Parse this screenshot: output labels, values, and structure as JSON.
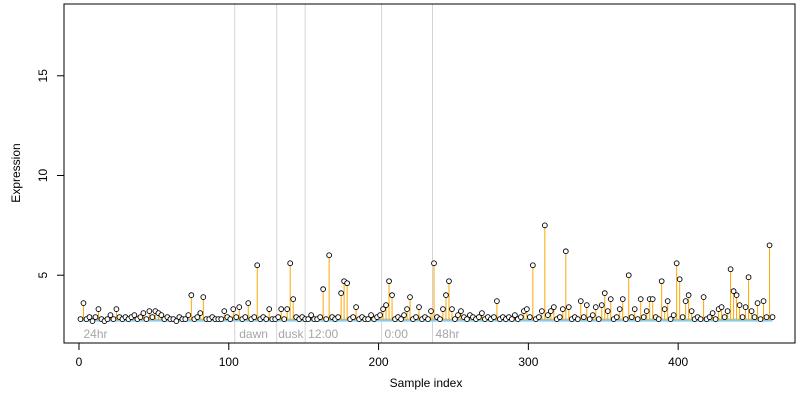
{
  "chart_data": {
    "type": "scatter",
    "title": "",
    "xlabel": "Sample index",
    "ylabel": "Expression",
    "xlim": [
      -10,
      478
    ],
    "ylim": [
      1.6,
      18.6
    ],
    "x_ticks": [
      0,
      100,
      200,
      300,
      400
    ],
    "x_tick_labels": [
      "0",
      "100",
      "200",
      "300",
      "400"
    ],
    "y_ticks": [
      5,
      10,
      15
    ],
    "y_tick_labels": [
      "5",
      "10",
      "15"
    ],
    "baseline": 2.75,
    "grid": false,
    "legend": "none",
    "region_dividers": [
      104,
      132,
      151,
      202,
      236
    ],
    "region_labels": [
      {
        "x": 3,
        "text": "24hr"
      },
      {
        "x": 107,
        "text": "dawn"
      },
      {
        "x": 133,
        "text": "dusk"
      },
      {
        "x": 153,
        "text": "12:00"
      },
      {
        "x": 204,
        "text": "0:00"
      },
      {
        "x": 238,
        "text": "48hr"
      }
    ],
    "colors": {
      "baseline": "#87ceeb",
      "stem": "#ffa500",
      "point_edge": "#000000",
      "point_fill": "#ffffff",
      "divider": "#d3d3d3",
      "region_text": "#a6a6a6"
    },
    "points": [
      [
        1,
        2.8
      ],
      [
        3,
        3.6
      ],
      [
        5,
        2.8
      ],
      [
        7,
        2.9
      ],
      [
        9,
        2.7
      ],
      [
        11,
        2.9
      ],
      [
        13,
        3.3
      ],
      [
        15,
        2.8
      ],
      [
        17,
        2.7
      ],
      [
        19,
        2.8
      ],
      [
        21,
        3.0
      ],
      [
        23,
        2.8
      ],
      [
        25,
        3.3
      ],
      [
        27,
        2.9
      ],
      [
        29,
        2.8
      ],
      [
        31,
        2.9
      ],
      [
        33,
        2.8
      ],
      [
        35,
        2.9
      ],
      [
        37,
        3.0
      ],
      [
        39,
        2.8
      ],
      [
        41,
        2.9
      ],
      [
        43,
        3.1
      ],
      [
        45,
        2.8
      ],
      [
        47,
        3.2
      ],
      [
        49,
        2.9
      ],
      [
        51,
        3.2
      ],
      [
        53,
        3.1
      ],
      [
        55,
        3.0
      ],
      [
        57,
        2.8
      ],
      [
        59,
        2.9
      ],
      [
        61,
        2.8
      ],
      [
        63,
        2.8
      ],
      [
        65,
        2.7
      ],
      [
        67,
        2.9
      ],
      [
        69,
        2.8
      ],
      [
        71,
        2.8
      ],
      [
        73,
        3.0
      ],
      [
        75,
        4.0
      ],
      [
        77,
        2.8
      ],
      [
        79,
        2.9
      ],
      [
        81,
        3.1
      ],
      [
        83,
        3.9
      ],
      [
        85,
        2.8
      ],
      [
        87,
        2.8
      ],
      [
        89,
        2.9
      ],
      [
        91,
        2.8
      ],
      [
        93,
        2.8
      ],
      [
        95,
        2.8
      ],
      [
        97,
        3.2
      ],
      [
        99,
        2.9
      ],
      [
        101,
        2.8
      ],
      [
        103,
        3.3
      ],
      [
        105,
        2.9
      ],
      [
        107,
        3.4
      ],
      [
        109,
        2.8
      ],
      [
        111,
        2.9
      ],
      [
        113,
        3.6
      ],
      [
        115,
        2.8
      ],
      [
        117,
        2.9
      ],
      [
        119,
        5.5
      ],
      [
        121,
        2.8
      ],
      [
        123,
        2.9
      ],
      [
        125,
        2.8
      ],
      [
        127,
        3.3
      ],
      [
        129,
        2.8
      ],
      [
        131,
        2.8
      ],
      [
        133,
        2.9
      ],
      [
        135,
        3.3
      ],
      [
        137,
        2.8
      ],
      [
        139,
        3.3
      ],
      [
        141,
        5.6
      ],
      [
        143,
        3.8
      ],
      [
        145,
        2.9
      ],
      [
        147,
        2.8
      ],
      [
        149,
        2.9
      ],
      [
        151,
        2.8
      ],
      [
        153,
        2.8
      ],
      [
        155,
        3.0
      ],
      [
        157,
        2.8
      ],
      [
        159,
        2.8
      ],
      [
        161,
        2.9
      ],
      [
        163,
        4.3
      ],
      [
        165,
        2.8
      ],
      [
        167,
        6.0
      ],
      [
        169,
        2.9
      ],
      [
        171,
        2.8
      ],
      [
        173,
        2.9
      ],
      [
        175,
        4.1
      ],
      [
        177,
        4.7
      ],
      [
        179,
        4.6
      ],
      [
        181,
        2.8
      ],
      [
        183,
        2.9
      ],
      [
        185,
        3.4
      ],
      [
        187,
        2.8
      ],
      [
        189,
        2.9
      ],
      [
        191,
        2.8
      ],
      [
        193,
        2.8
      ],
      [
        195,
        3.0
      ],
      [
        197,
        2.8
      ],
      [
        199,
        2.9
      ],
      [
        201,
        3.0
      ],
      [
        203,
        3.3
      ],
      [
        205,
        3.5
      ],
      [
        207,
        4.7
      ],
      [
        209,
        4.0
      ],
      [
        211,
        2.8
      ],
      [
        213,
        2.9
      ],
      [
        215,
        2.8
      ],
      [
        217,
        3.0
      ],
      [
        219,
        3.3
      ],
      [
        221,
        3.9
      ],
      [
        223,
        2.8
      ],
      [
        225,
        2.9
      ],
      [
        227,
        3.4
      ],
      [
        229,
        2.8
      ],
      [
        231,
        2.9
      ],
      [
        233,
        2.8
      ],
      [
        235,
        3.2
      ],
      [
        237,
        5.6
      ],
      [
        239,
        2.9
      ],
      [
        241,
        2.8
      ],
      [
        243,
        3.3
      ],
      [
        245,
        4.0
      ],
      [
        247,
        4.7
      ],
      [
        249,
        3.3
      ],
      [
        251,
        2.8
      ],
      [
        253,
        3.0
      ],
      [
        255,
        3.2
      ],
      [
        257,
        2.9
      ],
      [
        259,
        2.8
      ],
      [
        261,
        3.0
      ],
      [
        263,
        2.9
      ],
      [
        265,
        2.8
      ],
      [
        267,
        2.9
      ],
      [
        269,
        3.1
      ],
      [
        271,
        2.8
      ],
      [
        273,
        2.9
      ],
      [
        275,
        2.8
      ],
      [
        277,
        2.9
      ],
      [
        279,
        3.7
      ],
      [
        281,
        2.8
      ],
      [
        283,
        2.9
      ],
      [
        285,
        2.8
      ],
      [
        287,
        2.9
      ],
      [
        289,
        2.8
      ],
      [
        291,
        3.0
      ],
      [
        293,
        2.8
      ],
      [
        295,
        2.9
      ],
      [
        297,
        3.2
      ],
      [
        299,
        3.3
      ],
      [
        301,
        2.9
      ],
      [
        303,
        5.5
      ],
      [
        305,
        2.8
      ],
      [
        307,
        2.9
      ],
      [
        309,
        3.2
      ],
      [
        311,
        7.5
      ],
      [
        313,
        3.0
      ],
      [
        315,
        3.2
      ],
      [
        317,
        3.4
      ],
      [
        319,
        2.8
      ],
      [
        321,
        2.9
      ],
      [
        323,
        3.3
      ],
      [
        325,
        6.2
      ],
      [
        327,
        3.4
      ],
      [
        329,
        2.8
      ],
      [
        331,
        2.9
      ],
      [
        333,
        2.8
      ],
      [
        335,
        3.7
      ],
      [
        337,
        2.9
      ],
      [
        339,
        3.5
      ],
      [
        341,
        2.8
      ],
      [
        343,
        3.0
      ],
      [
        345,
        3.4
      ],
      [
        347,
        2.8
      ],
      [
        349,
        3.5
      ],
      [
        351,
        4.1
      ],
      [
        353,
        3.2
      ],
      [
        355,
        3.8
      ],
      [
        357,
        2.8
      ],
      [
        359,
        2.9
      ],
      [
        361,
        3.3
      ],
      [
        363,
        3.8
      ],
      [
        365,
        2.8
      ],
      [
        367,
        5.0
      ],
      [
        369,
        2.9
      ],
      [
        371,
        3.3
      ],
      [
        373,
        2.8
      ],
      [
        375,
        3.8
      ],
      [
        377,
        2.9
      ],
      [
        379,
        3.2
      ],
      [
        381,
        3.8
      ],
      [
        383,
        3.8
      ],
      [
        385,
        2.9
      ],
      [
        387,
        2.8
      ],
      [
        389,
        4.7
      ],
      [
        391,
        3.3
      ],
      [
        393,
        3.7
      ],
      [
        395,
        2.8
      ],
      [
        397,
        3.0
      ],
      [
        399,
        5.6
      ],
      [
        401,
        4.8
      ],
      [
        403,
        2.9
      ],
      [
        405,
        3.7
      ],
      [
        407,
        4.0
      ],
      [
        409,
        3.2
      ],
      [
        411,
        2.8
      ],
      [
        413,
        2.9
      ],
      [
        415,
        2.8
      ],
      [
        417,
        3.9
      ],
      [
        419,
        2.8
      ],
      [
        421,
        2.9
      ],
      [
        423,
        3.1
      ],
      [
        425,
        2.8
      ],
      [
        427,
        3.3
      ],
      [
        429,
        3.4
      ],
      [
        431,
        2.9
      ],
      [
        433,
        3.2
      ],
      [
        435,
        5.3
      ],
      [
        437,
        4.2
      ],
      [
        439,
        4.0
      ],
      [
        441,
        3.5
      ],
      [
        443,
        2.9
      ],
      [
        445,
        3.4
      ],
      [
        447,
        4.9
      ],
      [
        449,
        3.2
      ],
      [
        451,
        2.9
      ],
      [
        453,
        3.6
      ],
      [
        455,
        2.8
      ],
      [
        457,
        3.7
      ],
      [
        459,
        2.9
      ],
      [
        461,
        6.5
      ],
      [
        463,
        2.9
      ]
    ]
  }
}
